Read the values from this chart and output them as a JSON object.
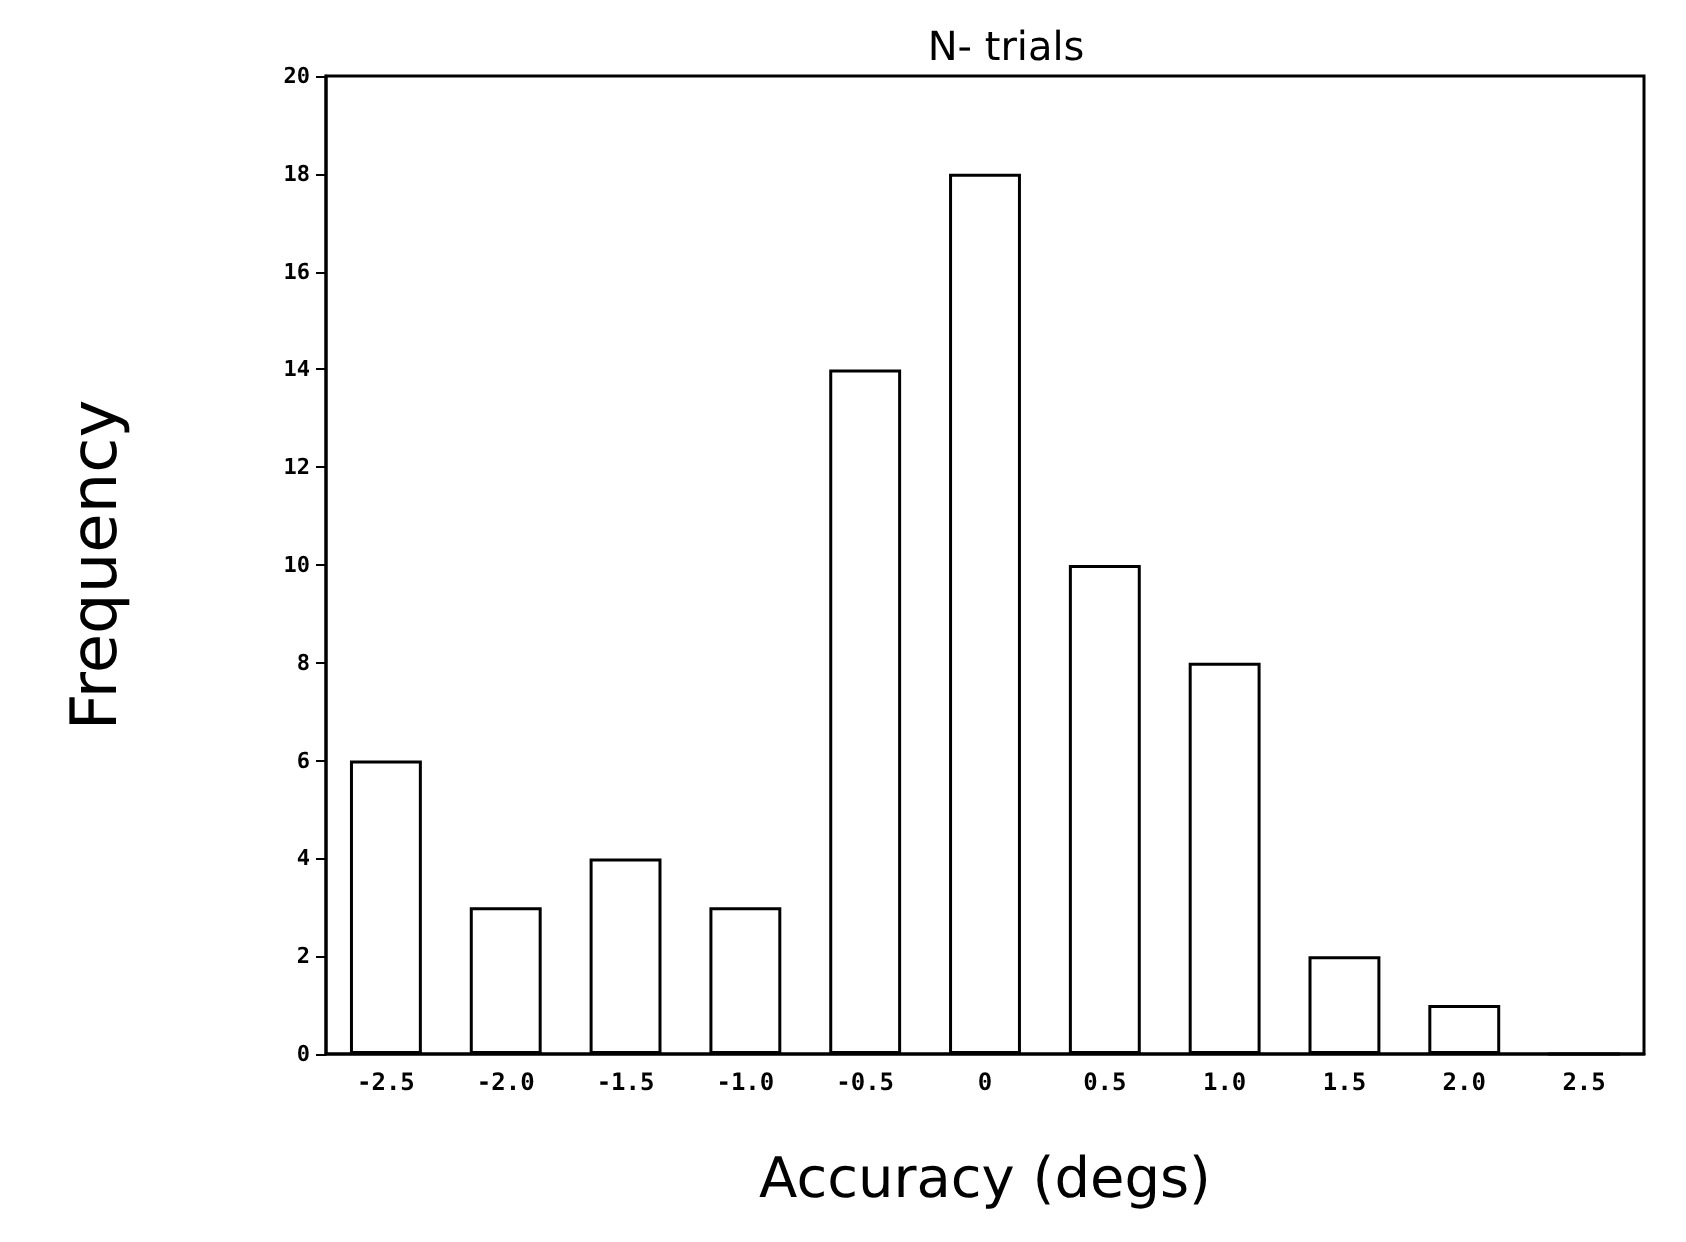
{
  "chart_data": {
    "type": "bar",
    "title": "N- trials",
    "xlabel": "Accuracy (degs)",
    "ylabel": "Frequency",
    "categories": [
      "-2.5",
      "-2.0",
      "-1.5",
      "-1.0",
      "-0.5",
      "0",
      "0.5",
      "1.0",
      "1.5",
      "2.0",
      "2.5"
    ],
    "values": [
      6,
      3,
      4,
      3,
      14,
      18,
      10,
      8,
      2,
      1,
      0
    ],
    "color": "#ffffff",
    "ylim": [
      0,
      20
    ],
    "yticks": [
      0,
      2,
      4,
      6,
      8,
      10,
      12,
      14,
      16,
      18,
      20
    ],
    "grid": false
  }
}
